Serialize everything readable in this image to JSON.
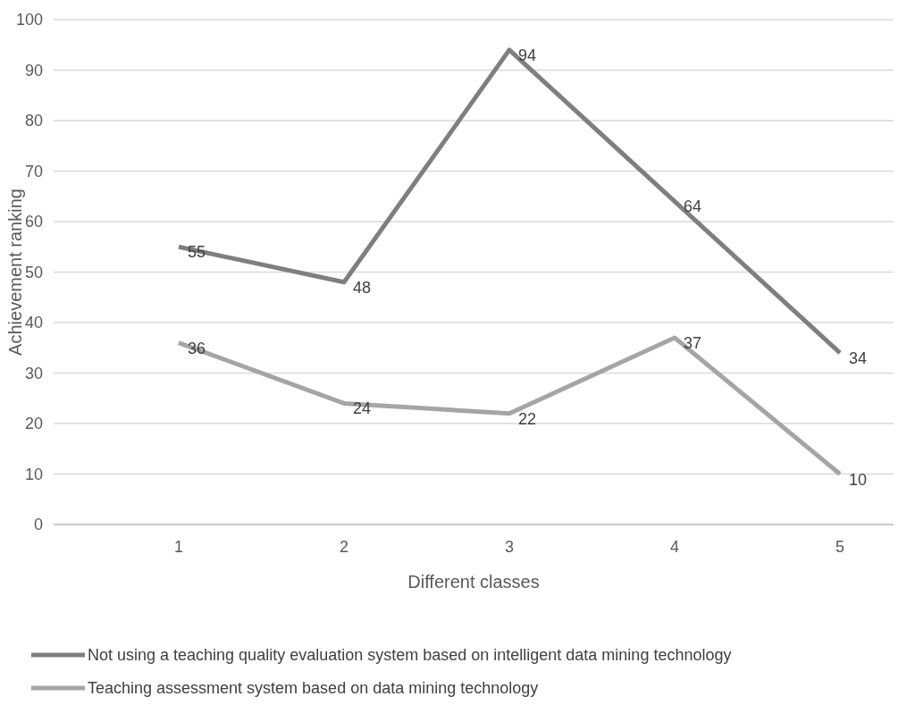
{
  "chart_data": {
    "type": "line",
    "xlabel": "Different classes",
    "ylabel": "Achievement ranking",
    "categories": [
      "1",
      "2",
      "3",
      "4",
      "5"
    ],
    "series": [
      {
        "name": "Not using a teaching quality evaluation system based on intelligent data mining technology",
        "color": "#7f7f7f",
        "values": [
          55,
          48,
          94,
          64,
          34
        ]
      },
      {
        "name": "Teaching assessment system based on data mining technology",
        "color": "#a5a5a5",
        "values": [
          36,
          24,
          22,
          37,
          10
        ]
      }
    ],
    "ylim": [
      0,
      100
    ],
    "yticks": [
      0,
      10,
      20,
      30,
      40,
      50,
      60,
      70,
      80,
      90,
      100
    ],
    "grid": "y",
    "legend": "bottom",
    "data_labels": true,
    "marker": "none",
    "line_style": "solid"
  }
}
